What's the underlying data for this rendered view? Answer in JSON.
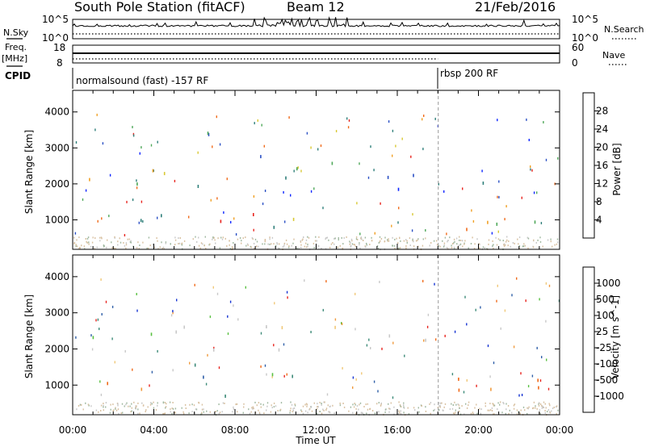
{
  "header": {
    "station": "South Pole Station (fitACF)",
    "beam": "Beam 12",
    "date": "21/Feb/2016"
  },
  "strips": {
    "nsky_label": "N.Sky",
    "nsearch_label": "N.Search",
    "scale_top": "10^5",
    "scale_bottom": "10^0",
    "freq_label": "Freq.",
    "freq_unit": "[MHz]",
    "freq_ticks": [
      "18",
      "8"
    ],
    "nave_label": "Nave",
    "nave_ticks": [
      "60",
      "0"
    ],
    "cpid_label": "CPID",
    "cpid_segments": [
      "normalsound (fast) -157 RF",
      "rbsp 200 RF"
    ]
  },
  "chart_data": [
    {
      "type": "heatmap",
      "panel": "power",
      "title": "",
      "xlabel": "Time UT",
      "ylabel": "Slant Range [km]",
      "xlim": [
        0,
        24
      ],
      "ylim": [
        180,
        4600
      ],
      "x_ticks": [
        "00:00",
        "04:00",
        "08:00",
        "12:00",
        "16:00",
        "20:00",
        "00:00"
      ],
      "y_ticks": [
        1000,
        2000,
        3000,
        4000
      ],
      "colorbar": {
        "label": "Power [dB]",
        "ticks": [
          4,
          8,
          12,
          16,
          20,
          24,
          28
        ],
        "range": [
          0,
          32
        ],
        "colors": [
          "#0a24ff",
          "#2a4fc4",
          "#2f7f7a",
          "#4fa85a",
          "#d8c832",
          "#f0a024",
          "#f06a1a",
          "#e8241e"
        ]
      },
      "regions": [
        {
          "t": [
            0.0,
            5.6
          ],
          "r": [
            1900,
            2700
          ],
          "level": 0.55
        },
        {
          "t": [
            1.0,
            5.0
          ],
          "r": [
            900,
            1450
          ],
          "level": 0.35
        },
        {
          "t": [
            5.6,
            11.0
          ],
          "r": [
            1850,
            2300
          ],
          "level": 0.3
        },
        {
          "t": [
            4.0,
            7.0
          ],
          "r": [
            2900,
            3500
          ],
          "level": 0.25
        },
        {
          "t": [
            9.2,
            11.3
          ],
          "r": [
            2400,
            3200
          ],
          "level": 0.3
        },
        {
          "t": [
            6.0,
            9.8
          ],
          "r": [
            650,
            1350
          ],
          "level": 0.85
        },
        {
          "t": [
            8.5,
            11.2
          ],
          "r": [
            800,
            1650
          ],
          "level": 0.6
        },
        {
          "t": [
            12.0,
            13.4
          ],
          "r": [
            2600,
            3400
          ],
          "level": 0.3
        },
        {
          "t": [
            14.0,
            18.0
          ],
          "r": [
            1800,
            2700
          ],
          "level": 0.3
        },
        {
          "t": [
            18.0,
            21.0
          ],
          "r": [
            1850,
            2300
          ],
          "level": 0.3
        },
        {
          "t": [
            18.4,
            20.8
          ],
          "r": [
            350,
            1200
          ],
          "level": 0.9
        },
        {
          "t": [
            20.5,
            24.0
          ],
          "r": [
            700,
            1350
          ],
          "level": 0.6
        }
      ]
    },
    {
      "type": "heatmap",
      "panel": "velocity",
      "title": "",
      "xlabel": "Time UT",
      "ylabel": "Slant Range [km]",
      "xlim": [
        0,
        24
      ],
      "ylim": [
        180,
        4600
      ],
      "x_ticks": [
        "00:00",
        "04:00",
        "08:00",
        "12:00",
        "16:00",
        "20:00",
        "00:00"
      ],
      "y_ticks": [
        1000,
        2000,
        3000,
        4000
      ],
      "colorbar": {
        "label": "Velocity [m s^-1]",
        "ticks": [
          "1000",
          "500",
          "100",
          "25",
          "-25",
          "-100",
          "-500",
          "-1000"
        ],
        "colors": [
          "#1432d2",
          "#2f5fa8",
          "#3c8a78",
          "#58c040",
          "#c8c8c8",
          "#f0c878",
          "#f09a3c",
          "#f06a1a",
          "#e8241e"
        ]
      },
      "regions": [
        {
          "t": [
            0.0,
            5.6
          ],
          "r": [
            1900,
            2700
          ],
          "level": 4
        },
        {
          "t": [
            1.0,
            5.2
          ],
          "r": [
            900,
            1450
          ],
          "level": 7
        },
        {
          "t": [
            5.6,
            11.0
          ],
          "r": [
            1850,
            2300
          ],
          "level": 4
        },
        {
          "t": [
            6.0,
            11.2
          ],
          "r": [
            600,
            1650
          ],
          "level": 2
        },
        {
          "t": [
            9.2,
            11.3
          ],
          "r": [
            2400,
            3200
          ],
          "level": 4
        },
        {
          "t": [
            12.0,
            13.4
          ],
          "r": [
            2600,
            3400
          ],
          "level": 4
        },
        {
          "t": [
            15.0,
            18.2
          ],
          "r": [
            1850,
            2600
          ],
          "level": 4
        },
        {
          "t": [
            18.4,
            24.0
          ],
          "r": [
            400,
            1400
          ],
          "level": 7
        }
      ]
    }
  ]
}
